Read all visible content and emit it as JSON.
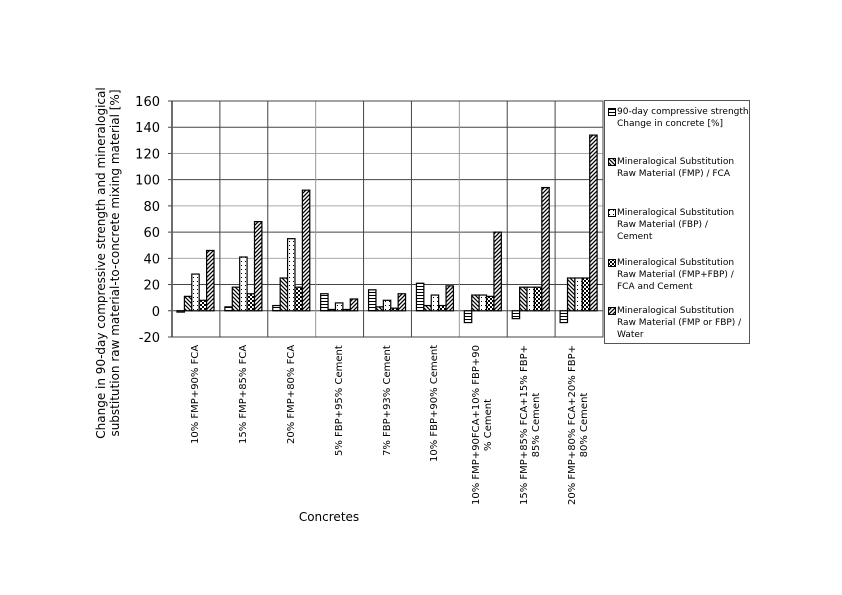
{
  "chart_data": {
    "type": "bar",
    "xlabel": "Concretes",
    "ylabel": "Change in 90-day compressive strength and mineralogical substitution raw material-to-concrete mixing material [%]",
    "ylabel_lines": [
      "Change in 90-day compressive strength and mineralogical",
      "substitution raw material-to-concrete mixing material [%]"
    ],
    "ylim": [
      -20,
      160
    ],
    "yticks": [
      "-20",
      "0",
      "20",
      "40",
      "60",
      "80",
      "100",
      "120",
      "140",
      "160"
    ],
    "grid": true,
    "legend_position": "right",
    "categories": [
      "10% FMP+90% FCA",
      "15% FMP+85% FCA",
      "20% FMP+80% FCA",
      "5% FBP+95% Cement",
      "7% FBP+93% Cement",
      "10% FBP+90% Cement",
      "10% FMP+90FCA+10% FBP+90\n% Cement",
      "15% FMP+85% FCA+15% FBP+\n85% Cement",
      "20% FMP+80% FCA+20% FBP+\n80% Cement"
    ],
    "series": [
      {
        "name": "90-day compressive strength\nChange in concrete [%]",
        "pattern": "horizontal-lines",
        "values": [
          -1,
          3,
          4,
          13,
          16,
          21,
          -9,
          -6,
          -9
        ]
      },
      {
        "name": "Mineralogical Substitution\nRaw Material (FMP) / FCA",
        "pattern": "back-diagonal",
        "values": [
          11,
          18,
          25,
          1,
          3,
          4,
          12,
          18,
          25
        ]
      },
      {
        "name": "Mineralogical Substitution\nRaw Material (FBP) /\nCement",
        "pattern": "dots",
        "values": [
          28,
          41,
          55,
          6,
          8,
          12,
          12,
          18,
          25
        ]
      },
      {
        "name": "Mineralogical Substitution\nRaw Material (FMP+FBP) /\nFCA and Cement",
        "pattern": "checker",
        "values": [
          8,
          13,
          18,
          1,
          2,
          4,
          11,
          18,
          25
        ]
      },
      {
        "name": "Mineralogical Substitution\nRaw Material (FMP or FBP) /\nWater",
        "pattern": "forward-diagonal",
        "values": [
          46,
          68,
          92,
          9,
          13,
          19,
          60,
          94,
          134
        ]
      }
    ]
  }
}
